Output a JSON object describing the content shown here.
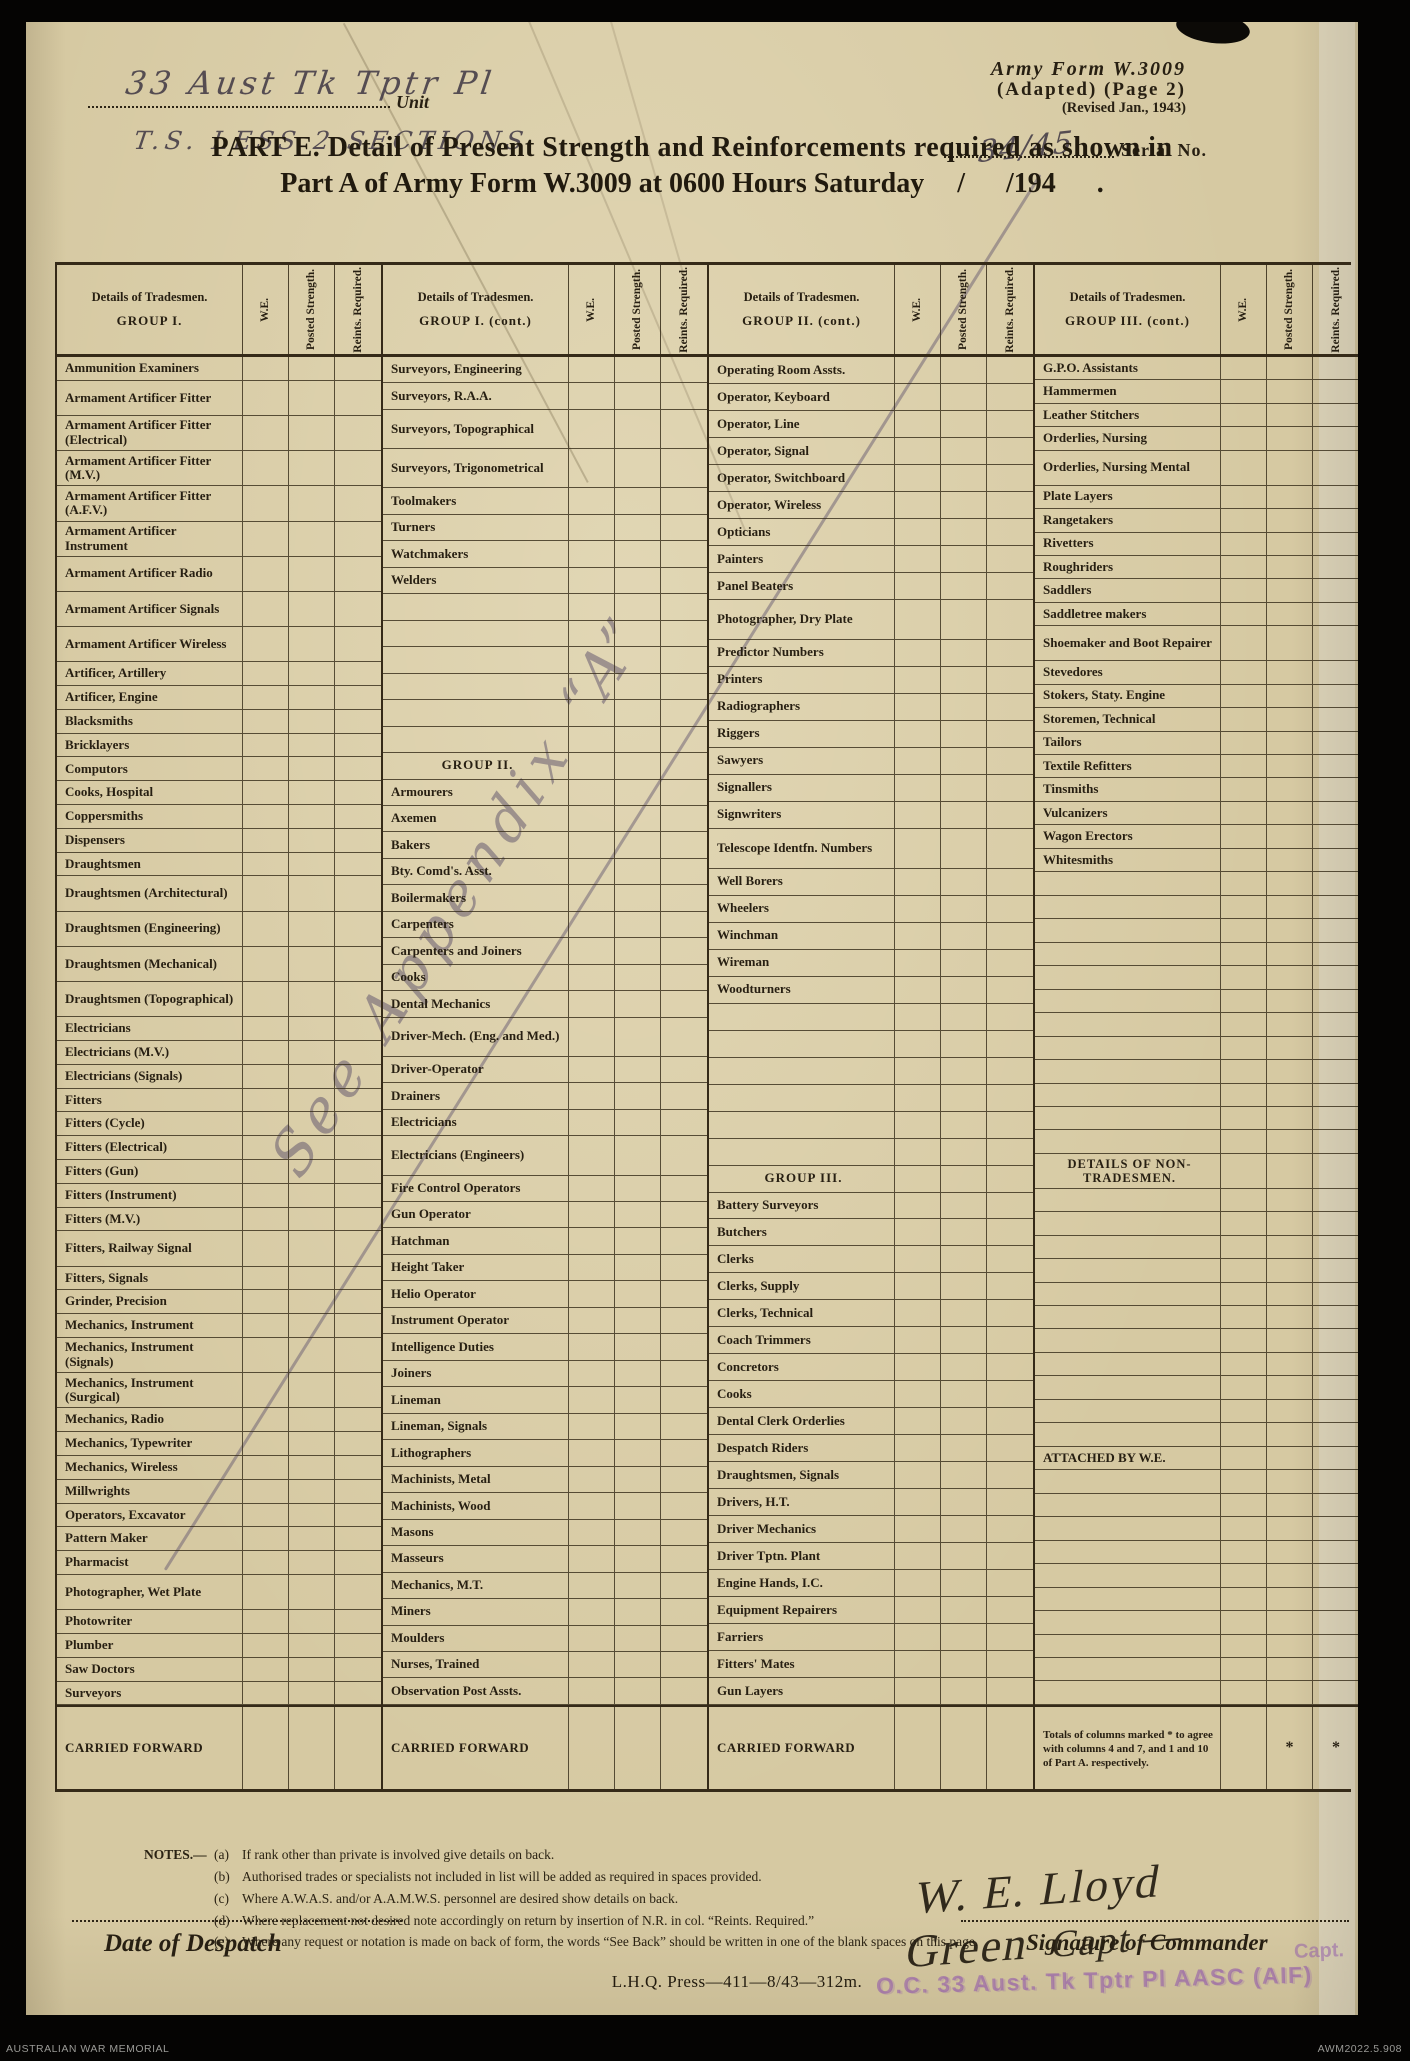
{
  "colors": {
    "paper": "#d6c9a2",
    "ink": "#271f12",
    "pencil": "#6e6278",
    "stamp": "#945eaa"
  },
  "header": {
    "unit_handwritten": "33 Aust Tk Tptr Pl",
    "unit_label": "Unit",
    "sections_note_handwritten": "T.S. LESS 2 SECTIONS",
    "form_name": "Army Form W.3009",
    "form_sub": "(Adapted)  (Page 2)",
    "form_revised": "(Revised Jan., 1943)",
    "serial_handwritten": "34/45",
    "serial_label": "Serial No.",
    "title_line1": "PART E.  Detail of Present Strength and Reinforcements required as shown in",
    "title_line2": "Part A of Army Form W.3009 at 0600 Hours Saturday",
    "title_date": "/ /194 ."
  },
  "annotations": {
    "appendix_note": "See Appendix “A”"
  },
  "table": {
    "header_line1": "Details of Tradesmen.",
    "col_headers": [
      "W.E.",
      "Posted Strength.",
      "Reints. Required."
    ],
    "sections": [
      {
        "group": "GROUP I.",
        "rows": [
          {
            "l": "Ammunition Examiners"
          },
          {
            "l": "Armament Artificer Fitter",
            "h": 1.5
          },
          {
            "l": "Armament Artificer Fitter  (Electrical)",
            "h": 1.5
          },
          {
            "l": "Armament Artificer Fitter  (M.V.)",
            "h": 1.5
          },
          {
            "l": "Armament Artificer Fitter  (A.F.V.)",
            "h": 1.5
          },
          {
            "l": "Armament Artificer Instrument",
            "h": 1.5
          },
          {
            "l": "Armament Artificer Radio",
            "h": 1.5
          },
          {
            "l": "Armament Artificer Signals",
            "h": 1.5
          },
          {
            "l": "Armament Artificer Wireless",
            "h": 1.5
          },
          {
            "l": "Artificer,  Artillery"
          },
          {
            "l": "Artificer,  Engine"
          },
          {
            "l": "Blacksmiths"
          },
          {
            "l": "Bricklayers"
          },
          {
            "l": "Computors"
          },
          {
            "l": "Cooks,  Hospital"
          },
          {
            "l": "Coppersmiths"
          },
          {
            "l": "Dispensers"
          },
          {
            "l": "Draughtsmen"
          },
          {
            "l": "Draughtsmen (Architectural)",
            "h": 1.5
          },
          {
            "l": "Draughtsmen (Engineering)",
            "h": 1.5
          },
          {
            "l": "Draughtsmen (Mechanical)",
            "h": 1.5
          },
          {
            "l": "Draughtsmen (Topographical)",
            "h": 1.5
          },
          {
            "l": "Electricians"
          },
          {
            "l": "Electricians (M.V.)"
          },
          {
            "l": "Electricians (Signals)"
          },
          {
            "l": "Fitters"
          },
          {
            "l": "Fitters (Cycle)"
          },
          {
            "l": "Fitters (Electrical)"
          },
          {
            "l": "Fitters (Gun)"
          },
          {
            "l": "Fitters (Instrument)"
          },
          {
            "l": "Fitters (M.V.)"
          },
          {
            "l": "Fitters, Railway Signal",
            "h": 1.5
          },
          {
            "l": "Fitters, Signals"
          },
          {
            "l": "Grinder, Precision"
          },
          {
            "l": "Mechanics, Instrument"
          },
          {
            "l": "Mechanics, Instrument (Signals)",
            "h": 1.5
          },
          {
            "l": "Mechanics, Instrument (Surgical)",
            "h": 1.5
          },
          {
            "l": "Mechanics, Radio"
          },
          {
            "l": "Mechanics, Typewriter"
          },
          {
            "l": "Mechanics, Wireless"
          },
          {
            "l": "Millwrights"
          },
          {
            "l": "Operators, Excavator"
          },
          {
            "l": "Pattern  Maker"
          },
          {
            "l": "Pharmacist"
          },
          {
            "l": "Photographer, Wet Plate",
            "h": 1.5
          },
          {
            "l": "Photowriter"
          },
          {
            "l": "Plumber"
          },
          {
            "l": "Saw Doctors"
          },
          {
            "l": "Surveyors"
          },
          {
            "k": "cf",
            "l": "CARRIED FORWARD"
          }
        ]
      },
      {
        "group": "GROUP I. (cont.)",
        "rows": [
          {
            "l": "Surveyors, Engineering"
          },
          {
            "l": "Surveyors, R.A.A."
          },
          {
            "l": "Surveyors, Topographical",
            "h": 1.5
          },
          {
            "l": "Surveyors, Trigonometrical",
            "h": 1.5
          },
          {
            "l": "Toolmakers"
          },
          {
            "l": "Turners"
          },
          {
            "l": "Watchmakers"
          },
          {
            "l": "Welders"
          },
          {
            "k": "b",
            "n": 6
          },
          {
            "k": "g",
            "l": "GROUP II."
          },
          {
            "l": "Armourers"
          },
          {
            "l": "Axemen"
          },
          {
            "l": "Bakers"
          },
          {
            "l": "Bty. Comd's. Asst."
          },
          {
            "l": "Boilermakers"
          },
          {
            "l": "Carpenters"
          },
          {
            "l": "Carpenters and Joiners"
          },
          {
            "l": "Cooks"
          },
          {
            "l": "Dental Mechanics"
          },
          {
            "l": "Driver-Mech. (Eng. and Med.)",
            "h": 1.5
          },
          {
            "l": "Driver-Operator"
          },
          {
            "l": "Drainers"
          },
          {
            "l": "Electricians"
          },
          {
            "l": "Electricians (Engineers)",
            "h": 1.5
          },
          {
            "l": "Fire Control Operators"
          },
          {
            "l": "Gun Operator"
          },
          {
            "l": "Hatchman"
          },
          {
            "l": "Height Taker"
          },
          {
            "l": "Helio Operator"
          },
          {
            "l": "Instrument Operator"
          },
          {
            "l": "Intelligence Duties"
          },
          {
            "l": "Joiners"
          },
          {
            "l": "Lineman"
          },
          {
            "l": "Lineman, Signals"
          },
          {
            "l": "Lithographers"
          },
          {
            "l": "Machinists, Metal"
          },
          {
            "l": "Machinists, Wood"
          },
          {
            "l": "Masons"
          },
          {
            "l": "Masseurs"
          },
          {
            "l": "Mechanics, M.T."
          },
          {
            "l": "Miners"
          },
          {
            "l": "Moulders"
          },
          {
            "l": "Nurses, Trained"
          },
          {
            "l": "Observation Post Assts."
          },
          {
            "k": "cf",
            "l": "CARRIED FORWARD"
          }
        ]
      },
      {
        "group": "GROUP II. (cont.)",
        "rows": [
          {
            "l": "Operating Room Assts."
          },
          {
            "l": "Operator, Keyboard"
          },
          {
            "l": "Operator, Line"
          },
          {
            "l": "Operator, Signal"
          },
          {
            "l": "Operator, Switchboard"
          },
          {
            "l": "Operator, Wireless"
          },
          {
            "l": "Opticians"
          },
          {
            "l": "Painters"
          },
          {
            "l": "Panel Beaters"
          },
          {
            "l": "Photographer, Dry Plate",
            "h": 1.5
          },
          {
            "l": "Predictor Numbers"
          },
          {
            "l": "Printers"
          },
          {
            "l": "Radiographers"
          },
          {
            "l": "Riggers"
          },
          {
            "l": "Sawyers"
          },
          {
            "l": "Signallers"
          },
          {
            "l": "Signwriters"
          },
          {
            "l": "Telescope Identfn. Numbers",
            "h": 1.5
          },
          {
            "l": "Well Borers"
          },
          {
            "l": "Wheelers"
          },
          {
            "l": "Winchman"
          },
          {
            "l": "Wireman"
          },
          {
            "l": "Woodturners"
          },
          {
            "k": "b",
            "n": 6
          },
          {
            "k": "g",
            "l": "GROUP III."
          },
          {
            "l": "Battery Surveyors"
          },
          {
            "l": "Butchers"
          },
          {
            "l": "Clerks"
          },
          {
            "l": "Clerks, Supply"
          },
          {
            "l": "Clerks, Technical"
          },
          {
            "l": "Coach Trimmers"
          },
          {
            "l": "Concretors"
          },
          {
            "l": "Cooks"
          },
          {
            "l": "Dental Clerk Orderlies"
          },
          {
            "l": "Despatch Riders"
          },
          {
            "l": "Draughtsmen, Signals"
          },
          {
            "l": "Drivers, H.T."
          },
          {
            "l": "Driver Mechanics"
          },
          {
            "l": "Driver Tptn. Plant"
          },
          {
            "l": "Engine Hands, I.C."
          },
          {
            "l": "Equipment Repairers"
          },
          {
            "l": "Farriers"
          },
          {
            "l": "Fitters' Mates"
          },
          {
            "l": "Gun Layers"
          },
          {
            "k": "cf",
            "l": "CARRIED FORWARD"
          }
        ]
      },
      {
        "group": "GROUP III. (cont.)",
        "rows": [
          {
            "l": "G.P.O. Assistants"
          },
          {
            "l": "Hammermen"
          },
          {
            "l": "Leather Stitchers"
          },
          {
            "l": "Orderlies, Nursing"
          },
          {
            "l": "Orderlies, Nursing Mental",
            "h": 1.5
          },
          {
            "l": "Plate Layers"
          },
          {
            "l": "Rangetakers"
          },
          {
            "l": "Rivetters"
          },
          {
            "l": "Roughriders"
          },
          {
            "l": "Saddlers"
          },
          {
            "l": "Saddletree makers"
          },
          {
            "l": "Shoemaker and Boot Repairer",
            "h": 1.5
          },
          {
            "l": "Stevedores"
          },
          {
            "l": "Stokers, Staty. Engine"
          },
          {
            "l": "Storemen, Technical"
          },
          {
            "l": "Tailors"
          },
          {
            "l": "Textile Refitters"
          },
          {
            "l": "Tinsmiths"
          },
          {
            "l": "Vulcanizers"
          },
          {
            "l": "Wagon Erectors"
          },
          {
            "l": "Whitesmiths"
          },
          {
            "k": "b",
            "n": 12
          },
          {
            "k": "gd",
            "l": "DETAILS OF NON-TRADESMEN.",
            "h": 1.5
          },
          {
            "k": "b",
            "n": 11
          },
          {
            "k": "ga",
            "l": "ATTACHED BY W.E."
          },
          {
            "k": "b",
            "n": 10
          },
          {
            "k": "tot",
            "l": "Totals of columns marked  *  to agree with columns 4 and 7, and 1 and 10 of Part A.  respectively.",
            "cells": [
              "",
              "*",
              "*"
            ]
          }
        ]
      }
    ]
  },
  "notes": {
    "lead": "NOTES.—",
    "items": [
      {
        "id": "(a)",
        "text": "If rank other than private is involved give details on back."
      },
      {
        "id": "(b)",
        "text": "Authorised trades or specialists not included in list will be added as required in spaces provided."
      },
      {
        "id": "(c)",
        "text": "Where A.W.A.S. and/or A.A.M.W.S. personnel are desired show details on back."
      },
      {
        "id": "(d)",
        "text": "Where replacement not desired note accordingly on return by insertion of N.R. in col. “Reints. Required.”"
      },
      {
        "id": "(e)",
        "text": "Where any request or notation is made on back of form, the words “See Back” should be written in one of the blank spaces on this page."
      }
    ]
  },
  "footer": {
    "date_label": "Date of Despatch",
    "signature_handwritten": "W. E. Lloyd Green",
    "signature_rank": "Capt —",
    "signature_label": "Signature of Commander",
    "stamp_text": "O.C. 33 Aust. Tk Tptr Pl AASC (AIF)",
    "stamp_fragment": "Capt.",
    "press_line": "L.H.Q.  Press—411—8/43—312m."
  },
  "archive_bar": {
    "left": "AUSTRALIAN WAR MEMORIAL",
    "right": "AWM2022.5.908"
  }
}
